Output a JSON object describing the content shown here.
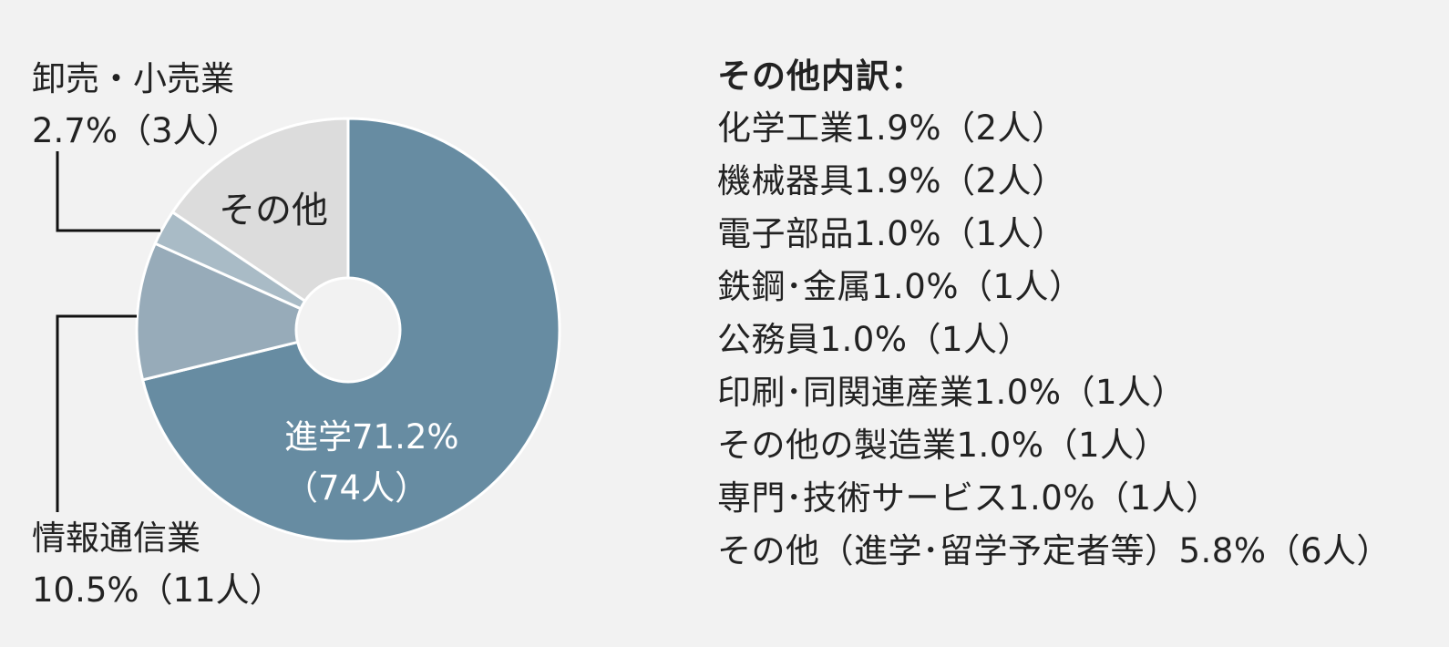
{
  "chart_data": {
    "type": "pie",
    "donut": true,
    "colors": {
      "進学": "#678ca2",
      "情報通信業": "#97abb9",
      "卸売・小売業": "#a9bbc6",
      "その他": "#dcdcdc",
      "background": "#f2f2f2",
      "separator": "#ffffff",
      "leader": "#111111"
    },
    "slices": [
      {
        "key": "進学",
        "value": 71.2,
        "label_lines": [
          "進学71.2%",
          "（74人）"
        ]
      },
      {
        "key": "情報通信業",
        "value": 10.5,
        "label_lines": [
          "情報通信業",
          "10.5%（11人）"
        ]
      },
      {
        "key": "卸売・小売業",
        "value": 2.7,
        "label_lines": [
          "卸売・小売業",
          "2.7%（3人）"
        ]
      },
      {
        "key": "その他",
        "value": 15.6,
        "label_lines": [
          "その他"
        ]
      }
    ]
  },
  "breakdown": {
    "title": "その他内訳：",
    "items": [
      "化学工業1.9%（2人）",
      "機械器具1.9%（2人）",
      "電子部品1.0%（1人）",
      "鉄鋼･金属1.0%（1人）",
      "公務員1.0%（1人）",
      "印刷･同関連産業1.0%（1人）",
      "その他の製造業1.0%（1人）",
      "専門･技術サービス1.0%（1人）",
      "その他（進学･留学予定者等）5.8%（6人）"
    ]
  }
}
